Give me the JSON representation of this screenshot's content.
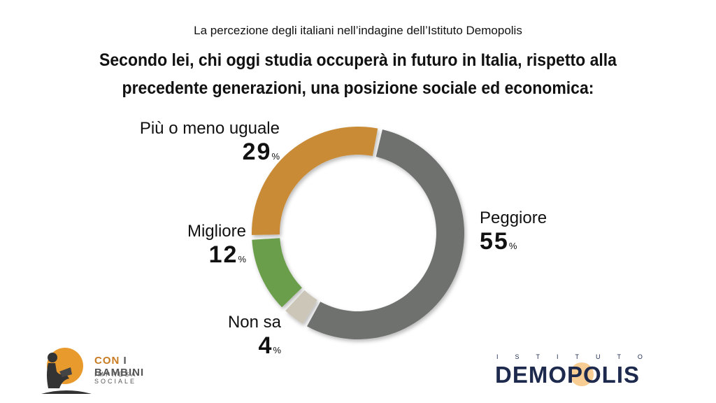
{
  "header": {
    "subtitle": "La percezione degli italiani nell’indagine dell’Istituto Demopolis",
    "question_line1": "Secondo lei, chi oggi studia occuperà in futuro in Italia, rispetto alla",
    "question_line2": "precedente generazioni, una posizione sociale ed economica:"
  },
  "chart_data": {
    "type": "pie",
    "variant": "donut",
    "unit": "%",
    "slices": [
      {
        "label": "Peggiore",
        "value": 55,
        "color": "#6e716d"
      },
      {
        "label": "Non sa",
        "value": 4,
        "color": "#cbc6b8"
      },
      {
        "label": "Migliore",
        "value": 12,
        "color": "#6a9e4c"
      },
      {
        "label": "Più o meno uguale",
        "value": 29,
        "color": "#c98b34"
      }
    ]
  },
  "labels": {
    "peggiore": {
      "name": "Peggiore",
      "value": "55",
      "pct": "%"
    },
    "non_sa": {
      "name": "Non sa",
      "value": "4",
      "pct": "%"
    },
    "migliore": {
      "name": "Migliore",
      "value": "12",
      "pct": "%"
    },
    "uguale": {
      "name": "Più o meno uguale",
      "value": "29",
      "pct": "%"
    }
  },
  "logos": {
    "left_name_a": "CON",
    "left_name_b": "I BAMBINI",
    "left_tagline": "IMPRESA SOCIALE",
    "right_top": "ISTITUTO",
    "right_main": "DEMOPOLIS"
  },
  "colors": {
    "demopolis_navy": "#1d2a4d",
    "con_i_bambini_orange": "#e99a2c"
  }
}
